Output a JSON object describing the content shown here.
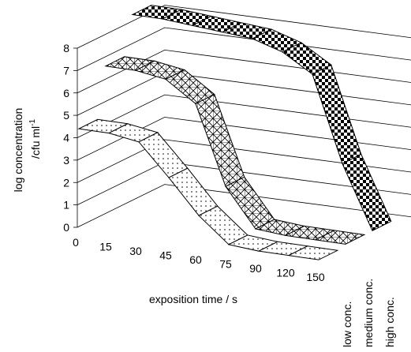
{
  "chart_data": {
    "type": "ribbon3d",
    "y_label_lines": [
      "log concentration",
      "/cfu ml"
    ],
    "y_label_superscript": "-1",
    "x_label": "exposition time / s",
    "categories": [
      "0",
      "15",
      "30",
      "45",
      "60",
      "75",
      "90",
      "120",
      "150"
    ],
    "series": [
      {
        "name": "low conc.",
        "pattern": "dots",
        "values": [
          4.4,
          4.4,
          4.2,
          2.8,
          1.3,
          0.2,
          0.1,
          0.1,
          0.1
        ]
      },
      {
        "name": "medium conc.",
        "pattern": "cross",
        "values": [
          6.6,
          6.6,
          6.4,
          5.5,
          2.0,
          0.3,
          0.2,
          0.2,
          0.2
        ]
      },
      {
        "name": "high conc.",
        "pattern": "checker",
        "values": [
          8.3,
          8.3,
          8.2,
          8.1,
          8.0,
          7.6,
          6.8,
          3.0,
          0.2
        ]
      }
    ],
    "ylim": [
      0,
      8
    ],
    "yticks": [
      0,
      1,
      2,
      3,
      4,
      5,
      6,
      7,
      8
    ],
    "grid": true
  }
}
